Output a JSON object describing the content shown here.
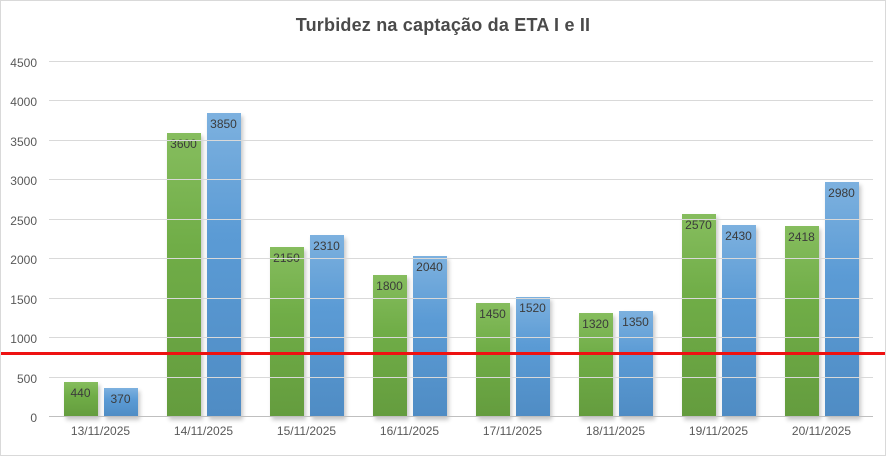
{
  "chart": {
    "title": "Turbidez na captação da ETA I e II"
  },
  "chart_data": {
    "type": "bar",
    "title": "Turbidez na captação da ETA I e II",
    "categories": [
      "13/11/2025",
      "14/11/2025",
      "15/11/2025",
      "16/11/2025",
      "17/11/2025",
      "18/11/2025",
      "19/11/2025",
      "20/11/2025"
    ],
    "series": [
      {
        "name": "green-series",
        "color": "#70ad47",
        "values": [
          440,
          3600,
          2150,
          1800,
          1450,
          1320,
          2570,
          2418
        ]
      },
      {
        "name": "blue-series",
        "color": "#5b9bd5",
        "values": [
          370,
          3850,
          2310,
          2040,
          1520,
          1350,
          2430,
          2980
        ]
      }
    ],
    "data_labels": true,
    "xlabel": "",
    "ylabel": "",
    "ylim": [
      0,
      4500
    ],
    "yticks": [
      0,
      500,
      1000,
      1500,
      2000,
      2500,
      3000,
      3500,
      4000,
      4500
    ],
    "grid": true,
    "legend_position": "none",
    "reference_line": {
      "value": 800,
      "color": "#ee1111"
    }
  },
  "colors": {
    "green_bar": "#70ad47",
    "blue_bar": "#5b9bd5",
    "reference_line": "#ee1111",
    "title_text": "#4a4a4a",
    "axis_text": "#595959",
    "data_label_text": "#3b3b3b",
    "gridline": "#d9d9d9"
  }
}
